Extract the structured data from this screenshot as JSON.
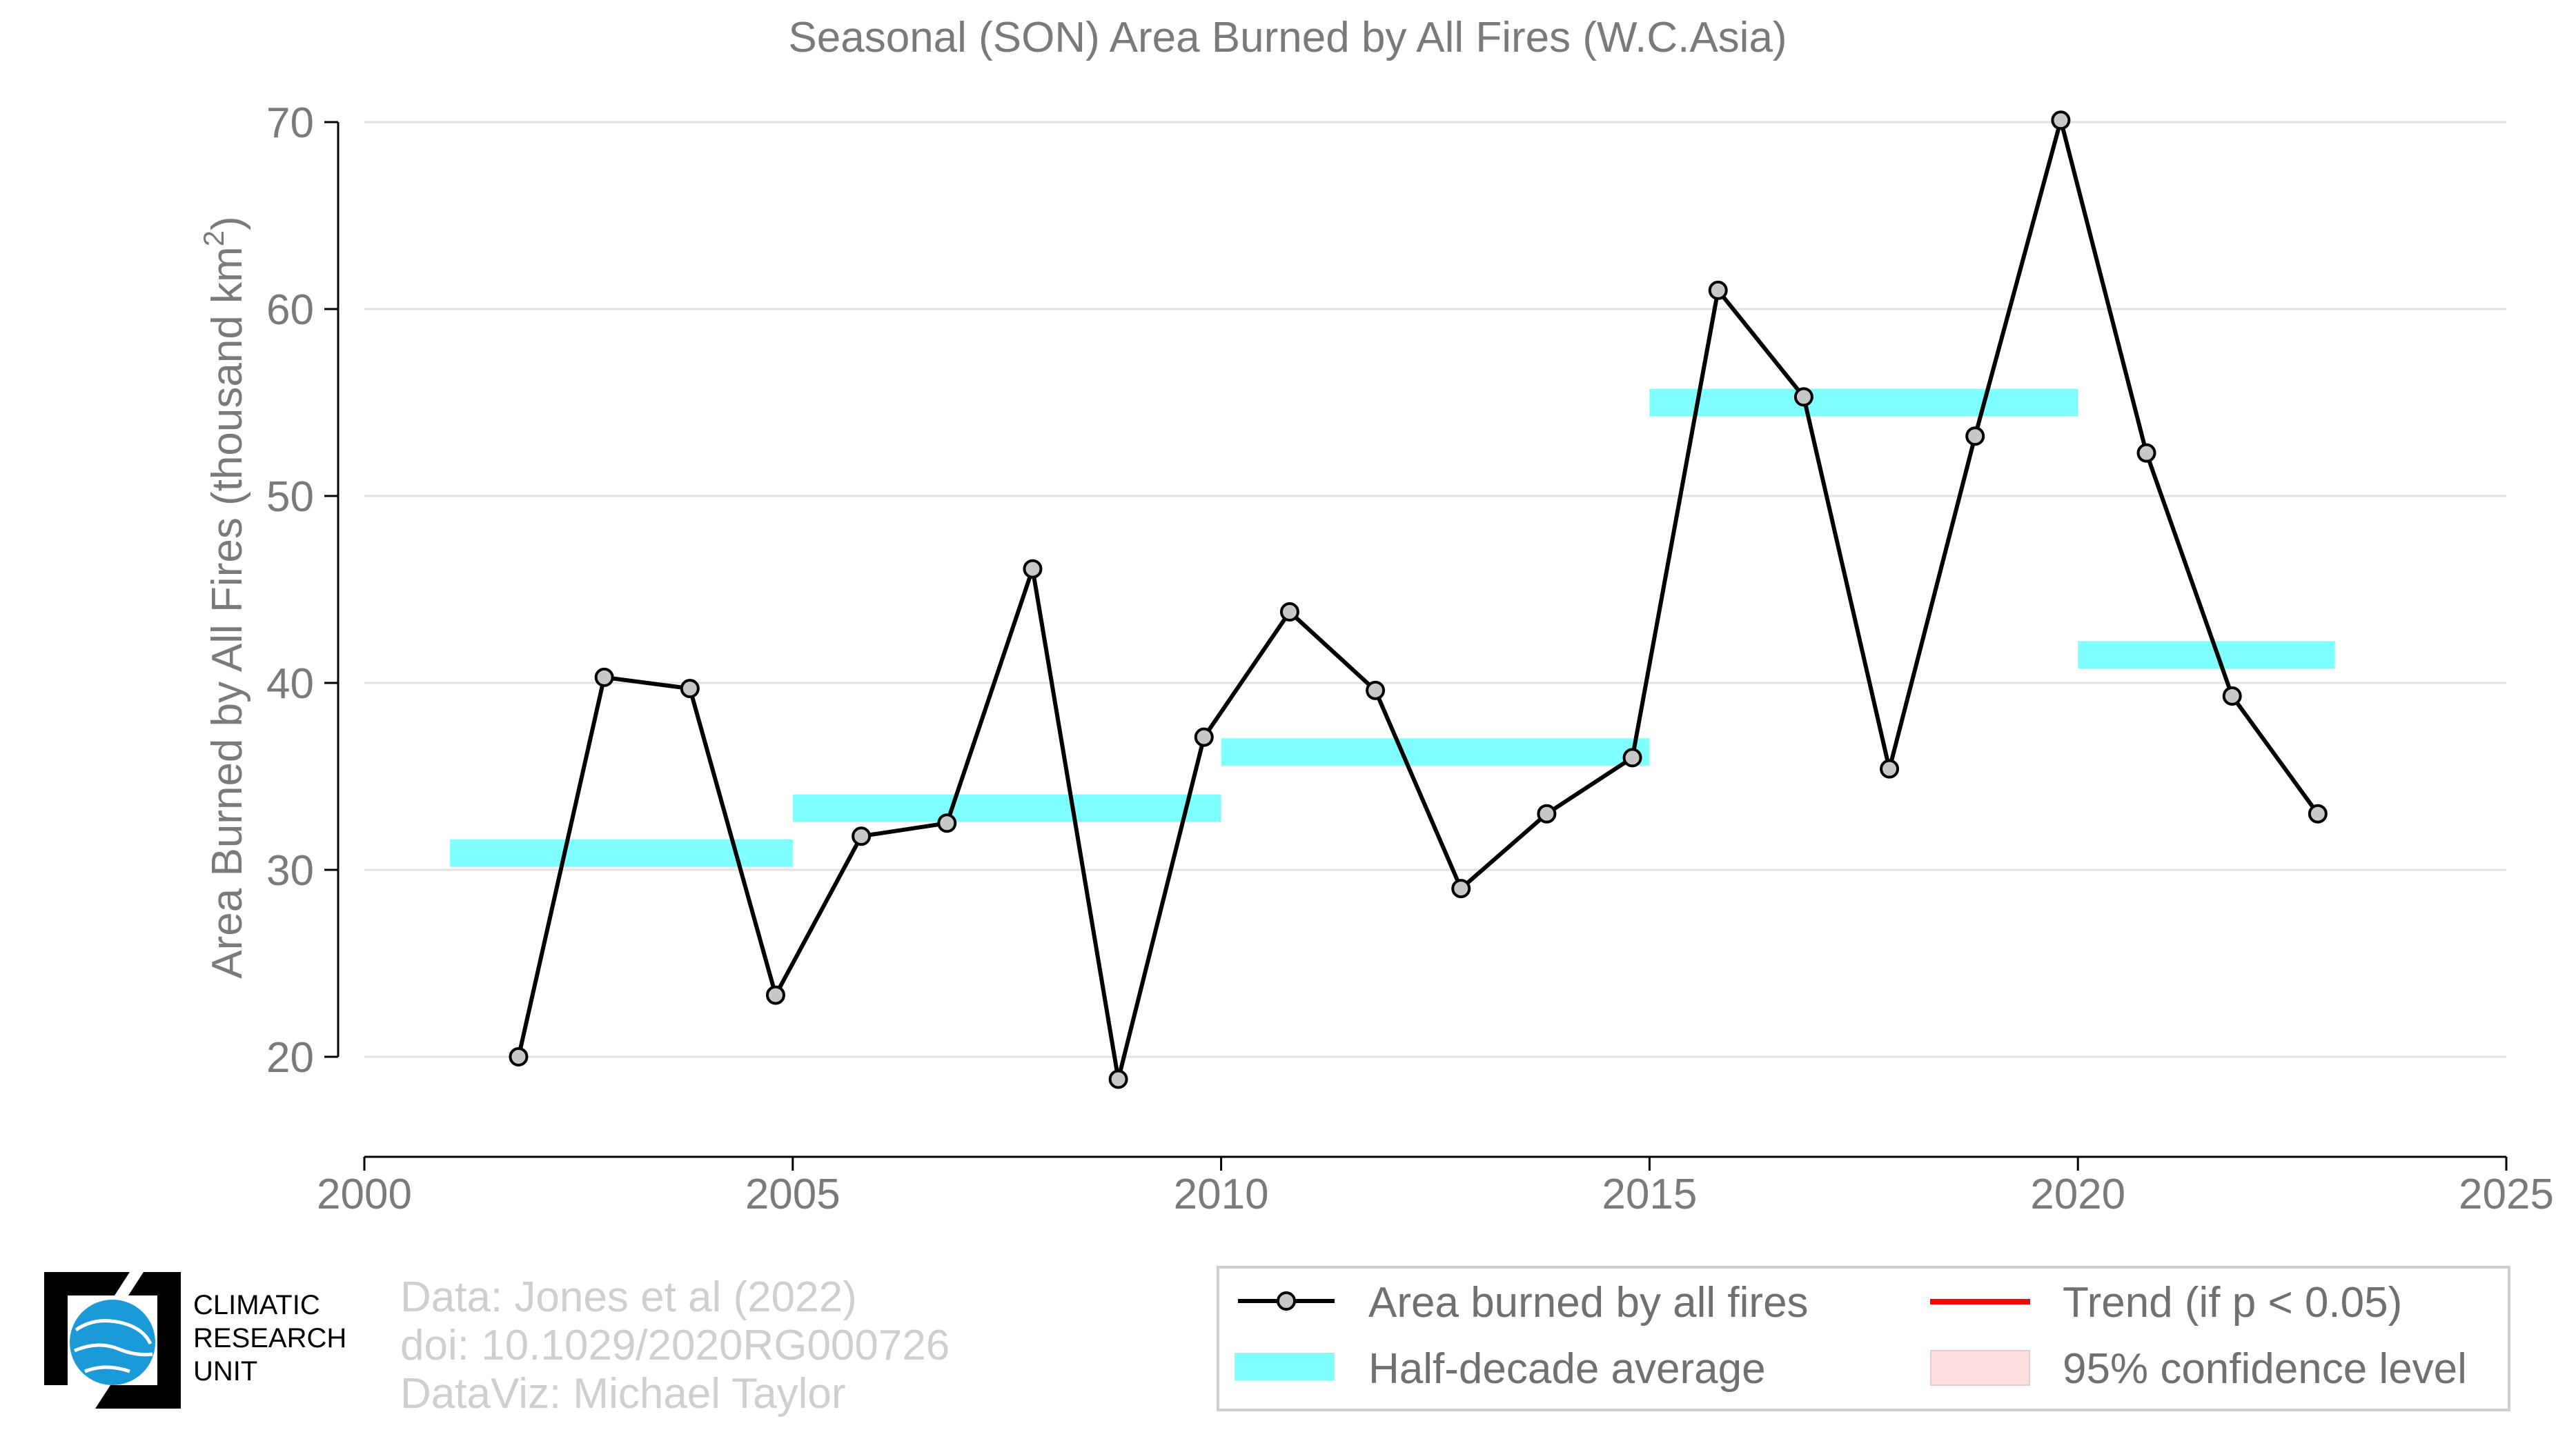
{
  "chart_data": {
    "type": "line",
    "title": "Seasonal (SON) Area Burned by All Fires (W.C.Asia)",
    "ylabel_main": "Area Burned by All Fires (thousand km",
    "ylabel_sup": "2",
    "ylabel_close": ")",
    "xlim": [
      2000,
      2025
    ],
    "ylim": [
      15,
      72
    ],
    "x_ticks": [
      2000,
      2005,
      2010,
      2015,
      2020,
      2025
    ],
    "y_ticks": [
      20,
      30,
      40,
      50,
      60,
      70
    ],
    "grid": true,
    "series": [
      {
        "name": "Area burned by all fires",
        "color": "#000000",
        "marker_fill": "#c8c8c8",
        "x": [
          2001.8,
          2002.8,
          2003.8,
          2004.8,
          2005.8,
          2006.8,
          2007.8,
          2008.8,
          2009.8,
          2010.8,
          2011.8,
          2012.8,
          2013.8,
          2014.8,
          2015.8,
          2016.8,
          2017.8,
          2018.8,
          2019.8,
          2020.8,
          2021.8,
          2022.8
        ],
        "y": [
          20.0,
          40.3,
          39.7,
          23.3,
          31.8,
          32.5,
          46.1,
          18.8,
          37.1,
          43.8,
          39.6,
          29.0,
          33.0,
          36.0,
          61.0,
          55.3,
          35.4,
          53.2,
          70.1,
          52.3,
          39.3,
          33.0
        ]
      }
    ],
    "half_decade_average": {
      "name": "Half-decade average",
      "color": "#7fffff",
      "segments": [
        {
          "x0": 2001,
          "x1": 2005,
          "y": 30.9
        },
        {
          "x0": 2005,
          "x1": 2010,
          "y": 33.3
        },
        {
          "x0": 2010,
          "x1": 2015,
          "y": 36.3
        },
        {
          "x0": 2015,
          "x1": 2020,
          "y": 55.0
        },
        {
          "x0": 2020,
          "x1": 2023,
          "y": 41.5
        }
      ]
    },
    "legend": {
      "placement": "bottom-right",
      "items": [
        {
          "label": "Area burned by all fires",
          "color": "#000000"
        },
        {
          "label": "Trend (if p < 0.05)",
          "color": "#ff0000"
        },
        {
          "label": "Half-decade average",
          "color": "#7fffff"
        },
        {
          "label": "95% confidence level",
          "color": "#ffe0e0"
        }
      ]
    }
  },
  "credits": {
    "line1": "Data: Jones et al (2022)",
    "line2": "doi: 10.1029/2020RG000726",
    "line3": "DataViz: Michael Taylor"
  },
  "logo": {
    "line1": "CLIMATIC",
    "line2": "RESEARCH",
    "line3": "UNIT",
    "color": "#1a9ad6"
  }
}
